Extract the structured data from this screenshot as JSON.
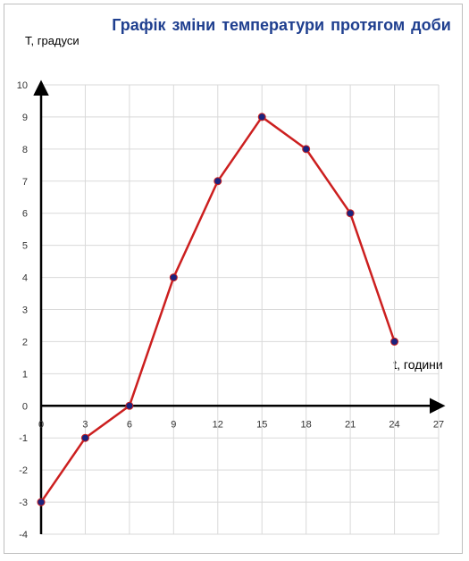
{
  "chart_data": {
    "type": "line",
    "title": "Графік зміни температури      протягом доби",
    "xlabel": "t, години",
    "ylabel": "T, градуси",
    "x": [
      0,
      3,
      6,
      9,
      12,
      15,
      18,
      21,
      24
    ],
    "series": [
      {
        "values": [
          -3,
          -1,
          0,
          4,
          7,
          9,
          8,
          6,
          2
        ]
      }
    ],
    "xlim": [
      0,
      27
    ],
    "ylim": [
      -4,
      10
    ],
    "xticks": [
      0,
      3,
      6,
      9,
      12,
      15,
      18,
      21,
      24,
      27
    ],
    "yticks": [
      -4,
      -3,
      -2,
      -1,
      0,
      1,
      2,
      3,
      4,
      5,
      6,
      7,
      8,
      9,
      10
    ],
    "grid": true,
    "colors": {
      "line": "#cc1f1f",
      "marker": "#1a237e",
      "title": "#1f3f8f",
      "grid": "#d9d9d9"
    }
  }
}
